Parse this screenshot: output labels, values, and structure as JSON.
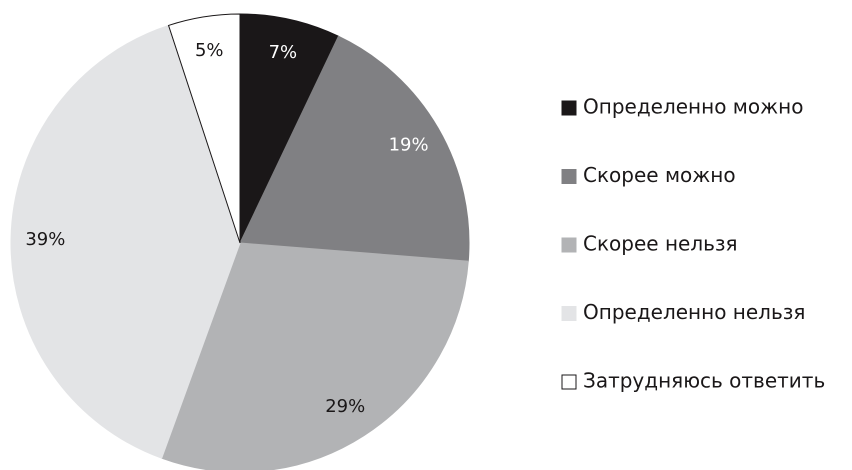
{
  "chart_data": {
    "type": "pie",
    "categories": [
      "Определенно можно",
      "Скорее можно",
      "Скорее нельзя",
      "Определенно нельзя",
      "Затрудняюсь ответить"
    ],
    "values": [
      7,
      19,
      29,
      39,
      5
    ],
    "value_labels": [
      "7%",
      "19%",
      "29%",
      "39%",
      "5%"
    ],
    "colors": [
      "#1a1718",
      "#808083",
      "#b2b3b5",
      "#e3e4e6",
      "#ffffff"
    ],
    "legend": "right"
  }
}
